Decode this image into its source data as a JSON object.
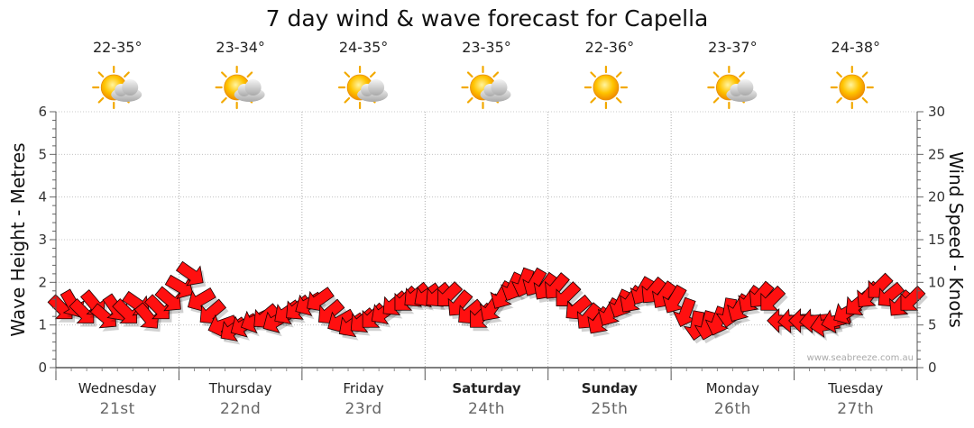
{
  "chart_data": {
    "type": "wind-wave-forecast",
    "title": "7 day wind & wave forecast for Capella",
    "left_axis_label": "Wave Height - Metres",
    "right_axis_label": "Wind Speed - Knots",
    "left_ylim": [
      0,
      6
    ],
    "right_ylim": [
      0,
      30
    ],
    "left_ticks": [
      "0",
      "1",
      "2",
      "3",
      "4",
      "5",
      "6"
    ],
    "right_ticks": [
      "0",
      "5",
      "10",
      "15",
      "20",
      "25",
      "30"
    ],
    "credit": "www.seabreeze.com.au",
    "days": [
      {
        "name": "Wednesday",
        "date": "21st",
        "temp": "22-35°",
        "weather": "partly-cloudy",
        "bold": false
      },
      {
        "name": "Thursday",
        "date": "22nd",
        "temp": "23-34°",
        "weather": "partly-cloudy",
        "bold": false
      },
      {
        "name": "Friday",
        "date": "23rd",
        "temp": "24-35°",
        "weather": "partly-cloudy",
        "bold": false
      },
      {
        "name": "Saturday",
        "date": "24th",
        "temp": "23-35°",
        "weather": "partly-cloudy",
        "bold": true
      },
      {
        "name": "Sunday",
        "date": "25th",
        "temp": "22-36°",
        "weather": "sunny",
        "bold": true
      },
      {
        "name": "Monday",
        "date": "26th",
        "temp": "23-37°",
        "weather": "partly-cloudy",
        "bold": false
      },
      {
        "name": "Tuesday",
        "date": "27th",
        "temp": "24-38°",
        "weather": "sunny",
        "bold": false
      }
    ],
    "wind_series_knots": [
      7,
      7.5,
      6.5,
      7.5,
      6,
      7,
      6.5,
      7.5,
      6,
      7,
      8,
      9.5,
      11,
      8,
      6.5,
      5,
      4.5,
      5,
      5.5,
      6,
      5.5,
      6.5,
      7,
      7.5,
      8,
      6.5,
      5.5,
      5,
      5.5,
      6,
      6.5,
      7.5,
      8,
      8.5,
      8.5,
      8.5,
      8.5,
      7.5,
      6.5,
      6,
      7,
      8.5,
      9.5,
      10,
      10,
      9.5,
      9.5,
      8.5,
      7,
      6,
      5.5,
      6.5,
      7.5,
      8,
      9,
      9,
      8.5,
      8,
      6.5,
      5,
      5,
      5.5,
      6.5,
      7,
      8,
      8.5,
      8,
      5.5,
      5.5,
      5.5,
      5.5,
      5,
      5.5,
      6.5,
      7.5,
      8.5,
      9.5,
      8.5,
      7.5,
      8
    ],
    "wind_directions_deg": [
      45,
      60,
      45,
      50,
      40,
      55,
      45,
      35,
      50,
      45,
      40,
      30,
      35,
      150,
      140,
      160,
      145,
      150,
      155,
      140,
      150,
      145,
      140,
      150,
      145,
      140,
      150,
      145,
      140,
      135,
      145,
      140,
      135,
      140,
      145,
      140,
      135,
      130,
      140,
      135,
      125,
      120,
      115,
      110,
      120,
      125,
      130,
      135,
      140,
      130,
      125,
      120,
      115,
      125,
      120,
      130,
      125,
      120,
      110,
      100,
      105,
      110,
      100,
      120,
      125,
      130,
      135,
      180,
      175,
      180,
      175,
      170,
      165,
      150,
      140,
      130,
      135,
      140,
      130,
      135
    ]
  }
}
